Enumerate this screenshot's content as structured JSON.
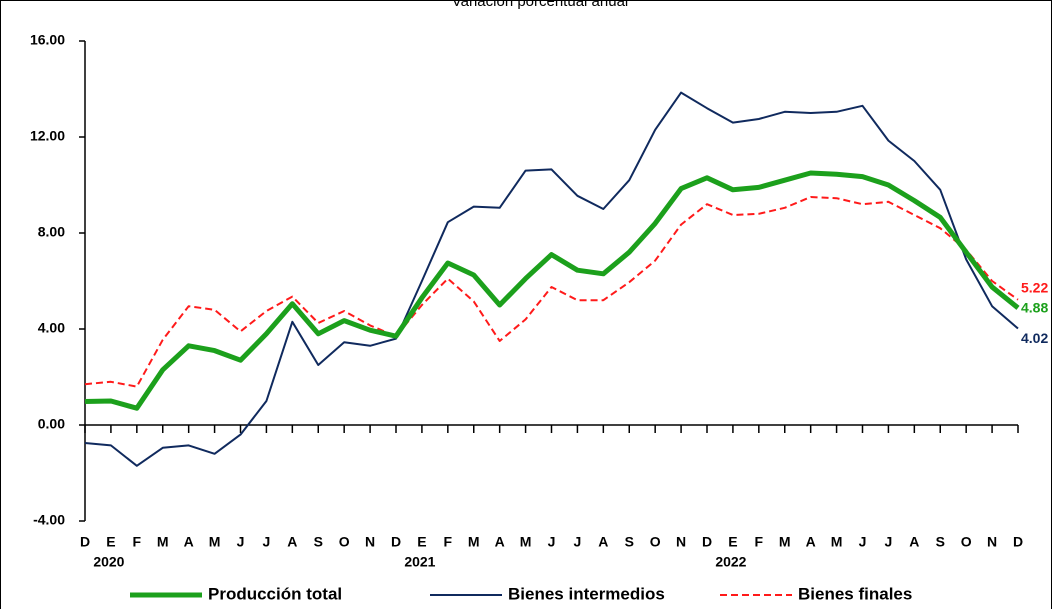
{
  "chart_data": {
    "type": "line",
    "title": "Variación porcentual anual",
    "categories": [
      "D",
      "E",
      "F",
      "M",
      "A",
      "M",
      "J",
      "J",
      "A",
      "S",
      "O",
      "N",
      "D",
      "E",
      "F",
      "M",
      "A",
      "M",
      "J",
      "J",
      "A",
      "S",
      "O",
      "N",
      "D",
      "E",
      "F",
      "M",
      "A",
      "M",
      "J",
      "J",
      "A",
      "S",
      "O",
      "N",
      "D"
    ],
    "years": [
      null,
      "2020",
      null,
      null,
      null,
      null,
      null,
      null,
      null,
      null,
      null,
      null,
      null,
      "2021",
      null,
      null,
      null,
      null,
      null,
      null,
      null,
      null,
      null,
      null,
      null,
      "2022",
      null,
      null,
      null,
      null,
      null,
      null,
      null,
      null,
      null,
      null,
      null
    ],
    "ylim": [
      -4,
      16
    ],
    "yticks": [
      {
        "value": -4,
        "label": "-4.00"
      },
      {
        "value": 0,
        "label": "0.00"
      },
      {
        "value": 4,
        "label": "4.00"
      },
      {
        "value": 8,
        "label": "8.00"
      },
      {
        "value": 12,
        "label": "12.00"
      },
      {
        "value": 16,
        "label": "16.00"
      }
    ],
    "series": [
      {
        "name": "Producción total",
        "color": "#1ca01c",
        "width": 5,
        "dash": "none",
        "values": [
          0.98,
          1.0,
          0.7,
          2.3,
          3.3,
          3.1,
          2.7,
          3.8,
          5.05,
          3.8,
          4.35,
          3.95,
          3.7,
          5.3,
          6.75,
          6.25,
          5.0,
          6.1,
          7.1,
          6.45,
          6.3,
          7.2,
          8.4,
          9.85,
          10.3,
          9.8,
          9.9,
          10.2,
          10.5,
          10.45,
          10.35,
          10.0,
          9.35,
          8.65,
          7.2,
          5.75,
          4.88
        ]
      },
      {
        "name": "Bienes intermedios",
        "color": "#102a5e",
        "width": 2,
        "dash": "none",
        "values": [
          -0.75,
          -0.85,
          -1.7,
          -0.95,
          -0.85,
          -1.2,
          -0.4,
          1.0,
          4.3,
          2.5,
          3.45,
          3.3,
          3.6,
          6.0,
          8.45,
          9.1,
          9.05,
          10.6,
          10.65,
          9.55,
          9.0,
          10.2,
          12.3,
          13.85,
          13.2,
          12.6,
          12.75,
          13.05,
          13.0,
          13.05,
          13.3,
          11.85,
          11.0,
          9.8,
          6.9,
          4.95,
          4.02
        ]
      },
      {
        "name": "Bienes finales",
        "color": "#ff1a1a",
        "width": 2,
        "dash": "7 4",
        "values": [
          1.7,
          1.8,
          1.6,
          3.55,
          4.95,
          4.8,
          3.9,
          4.75,
          5.35,
          4.25,
          4.75,
          4.15,
          3.7,
          5.0,
          6.1,
          5.15,
          3.5,
          4.4,
          5.75,
          5.2,
          5.2,
          5.95,
          6.85,
          8.35,
          9.2,
          8.75,
          8.8,
          9.05,
          9.5,
          9.45,
          9.2,
          9.3,
          8.75,
          8.2,
          7.3,
          6.0,
          5.22
        ]
      }
    ]
  }
}
